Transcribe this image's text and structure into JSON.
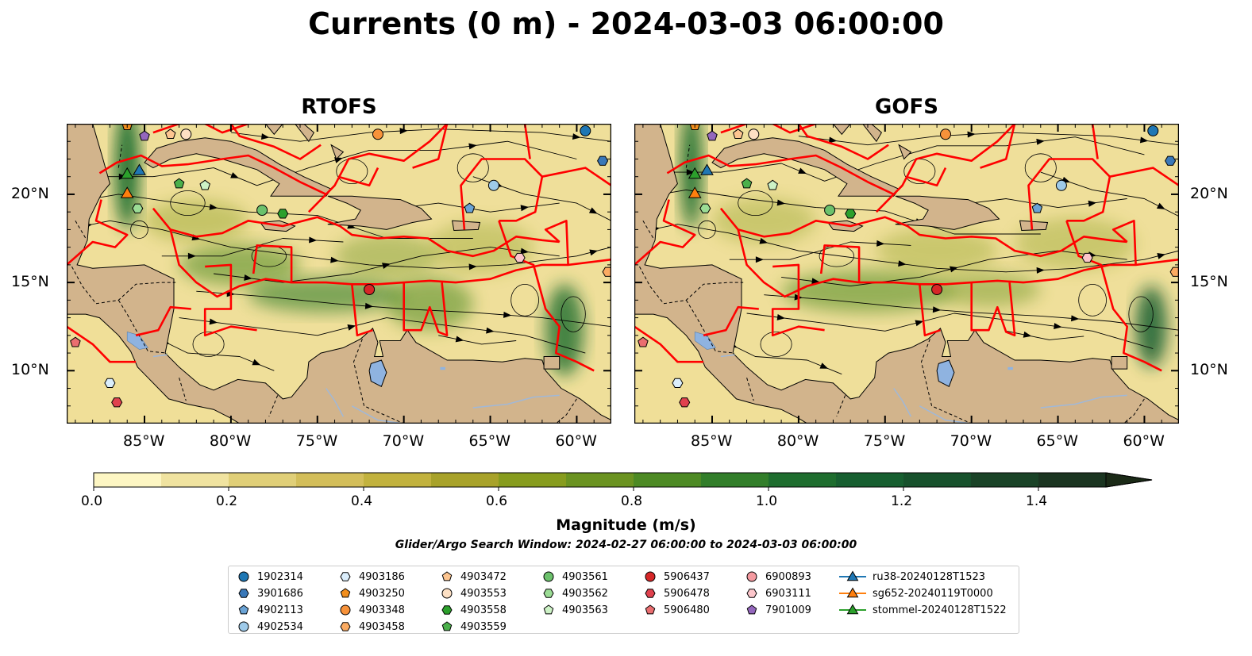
{
  "title": "Currents (0 m) - 2024-03-03 06:00:00",
  "panels": [
    {
      "title": "RTOFS"
    },
    {
      "title": "GOFS"
    }
  ],
  "map": {
    "lon_range": [
      -89.5,
      -58.0
    ],
    "lat_range": [
      7.0,
      24.0
    ],
    "lon_ticks": [
      "85°W",
      "80°W",
      "75°W",
      "70°W",
      "65°W",
      "60°W"
    ],
    "lat_ticks": [
      "20°N",
      "15°N",
      "10°N"
    ],
    "land_color": "#d2b48c",
    "boundary_color": "#ff0000",
    "lake_color": "#8fb3e0",
    "river_color": "#a0b8d8"
  },
  "colorbar": {
    "label": "Magnitude (m/s)",
    "range": [
      0.0,
      1.5
    ],
    "extend": "max",
    "tick_labels": [
      "0.0",
      "0.2",
      "0.4",
      "0.6",
      "0.8",
      "1.0",
      "1.2",
      "1.4"
    ],
    "colors": [
      "#fdf6c3",
      "#f0e3a0",
      "#e0cf78",
      "#d3be5a",
      "#c2b23e",
      "#a8a22a",
      "#879c1e",
      "#6b9321",
      "#4d8a24",
      "#327e2a",
      "#1e6d2e",
      "#175f30",
      "#17512c",
      "#1a4327",
      "#1b3521"
    ]
  },
  "search_window": "Glider/Argo Search Window: 2024-02-27 06:00:00 to 2024-03-03 06:00:00",
  "legend": {
    "columns": [
      [
        {
          "label": "1902314",
          "marker": "circle",
          "color": "#1f77b4"
        },
        {
          "label": "3901686",
          "marker": "hexagon",
          "color": "#3a78b8"
        },
        {
          "label": "4902113",
          "marker": "pentagon",
          "color": "#6aa3d5"
        },
        {
          "label": "4902534",
          "marker": "circle",
          "color": "#9ecae9"
        }
      ],
      [
        {
          "label": "4903186",
          "marker": "hexagon",
          "color": "#dbeefc"
        },
        {
          "label": "4903250",
          "marker": "pentagon",
          "color": "#f28e1c"
        },
        {
          "label": "4903348",
          "marker": "circle",
          "color": "#f7923a"
        },
        {
          "label": "4903458",
          "marker": "hexagon",
          "color": "#fbab62"
        }
      ],
      [
        {
          "label": "4903472",
          "marker": "pentagon",
          "color": "#fdc590"
        },
        {
          "label": "4903553",
          "marker": "circle",
          "color": "#fde0c4"
        },
        {
          "label": "4903558",
          "marker": "hexagon",
          "color": "#2ca02c"
        },
        {
          "label": "4903559",
          "marker": "pentagon",
          "color": "#4bb04b"
        }
      ],
      [
        {
          "label": "4903561",
          "marker": "circle",
          "color": "#6cc16c"
        },
        {
          "label": "4903562",
          "marker": "hexagon",
          "color": "#9bdc95"
        },
        {
          "label": "4903563",
          "marker": "pentagon",
          "color": "#cdf2c6"
        }
      ],
      [
        {
          "label": "5906437",
          "marker": "circle",
          "color": "#d62728"
        },
        {
          "label": "5906478",
          "marker": "hexagon",
          "color": "#e0424e"
        },
        {
          "label": "5906480",
          "marker": "pentagon",
          "color": "#ea6e70"
        }
      ],
      [
        {
          "label": "6900893",
          "marker": "circle",
          "color": "#f49aa0"
        },
        {
          "label": "6903111",
          "marker": "hexagon",
          "color": "#fcc6cb"
        },
        {
          "label": "7901009",
          "marker": "pentagon",
          "color": "#9467bd"
        }
      ],
      [
        {
          "label": "ru38-20240128T1523",
          "marker": "triangle-line",
          "color": "#1f77b4"
        },
        {
          "label": "sg652-20240119T0000",
          "marker": "triangle-line",
          "color": "#ff7f0e"
        },
        {
          "label": "stommel-20240128T1522",
          "marker": "triangle-line",
          "color": "#2ca02c"
        }
      ]
    ]
  },
  "floats": [
    {
      "id": "1902314",
      "lon": -59.5,
      "lat": 23.6
    },
    {
      "id": "3901686",
      "lon": -58.5,
      "lat": 21.9
    },
    {
      "id": "4902113",
      "lon": -66.2,
      "lat": 19.2
    },
    {
      "id": "4902534",
      "lon": -64.8,
      "lat": 20.5
    },
    {
      "id": "4903186",
      "lon": -87.0,
      "lat": 9.3
    },
    {
      "id": "4903250",
      "lon": -86.0,
      "lat": 23.9
    },
    {
      "id": "4903348",
      "lon": -71.5,
      "lat": 23.4
    },
    {
      "id": "4903458",
      "lon": -58.2,
      "lat": 15.6
    },
    {
      "id": "4903472",
      "lon": -83.5,
      "lat": 23.4
    },
    {
      "id": "4903553",
      "lon": -82.6,
      "lat": 23.4
    },
    {
      "id": "4903558",
      "lon": -77.0,
      "lat": 18.9
    },
    {
      "id": "4903559",
      "lon": -83.0,
      "lat": 20.6
    },
    {
      "id": "4903561",
      "lon": -78.2,
      "lat": 19.1
    },
    {
      "id": "4903562",
      "lon": -85.4,
      "lat": 19.2
    },
    {
      "id": "4903563",
      "lon": -81.5,
      "lat": 20.5
    },
    {
      "id": "5906437",
      "lon": -72.0,
      "lat": 14.6
    },
    {
      "id": "5906478",
      "lon": -86.6,
      "lat": 8.2
    },
    {
      "id": "5906480",
      "lon": -89.0,
      "lat": 11.6
    },
    {
      "id": "6903111",
      "lon": -63.3,
      "lat": 16.4
    },
    {
      "id": "7901009",
      "lon": -85.0,
      "lat": 23.3
    }
  ],
  "gliders": [
    {
      "id": "ru38-20240128T1523",
      "lon": -85.3,
      "lat": 21.3,
      "color": "#1f77b4"
    },
    {
      "id": "sg652-20240119T0000",
      "lon": -86.0,
      "lat": 20.0,
      "color": "#ff7f0e"
    },
    {
      "id": "stommel-20240128T1522",
      "lon": -86.0,
      "lat": 21.1,
      "color": "#2ca02c"
    }
  ]
}
